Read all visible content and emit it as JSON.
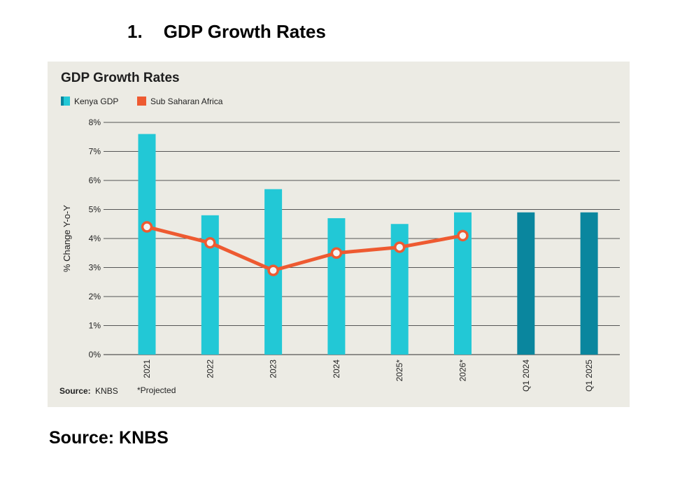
{
  "heading": {
    "number": "1.",
    "text": "GDP Growth Rates"
  },
  "chart_data": {
    "type": "bar",
    "title": "GDP Growth Rates",
    "ylabel": "% Change Y-o-Y",
    "xlabel": "",
    "ylim": [
      0,
      8
    ],
    "yticks": [
      "0%",
      "1%",
      "2%",
      "3%",
      "4%",
      "5%",
      "6%",
      "7%",
      "8%"
    ],
    "categories": [
      "2021",
      "2022",
      "2023",
      "2024",
      "2025*",
      "2026*",
      "Q1 2024",
      "Q1 2025"
    ],
    "series": [
      {
        "name": "Kenya GDP",
        "type": "bar",
        "values": [
          7.6,
          4.8,
          5.7,
          4.7,
          4.5,
          4.9,
          4.9,
          4.9
        ]
      },
      {
        "name": "Sub Saharan Africa",
        "type": "line",
        "values": [
          4.4,
          3.85,
          2.9,
          3.5,
          3.7,
          4.1,
          null,
          null
        ]
      }
    ],
    "grid": true,
    "legend": "top-left",
    "colors": {
      "bar": "#22c8d6",
      "bar_quarter": "#0a869e",
      "line": "#ee5a31"
    },
    "footer": {
      "source_label": "Source:",
      "source_value": "KNBS",
      "note": "*Projected"
    }
  },
  "source_caption": "Source: KNBS"
}
